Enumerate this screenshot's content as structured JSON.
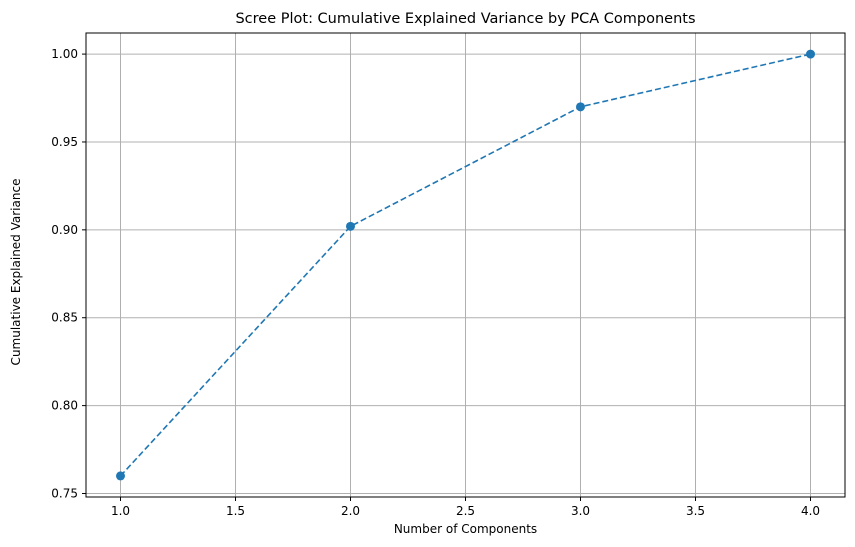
{
  "chart_data": {
    "type": "line",
    "title": "Scree Plot: Cumulative Explained Variance by PCA Components",
    "xlabel": "Number of Components",
    "ylabel": "Cumulative Explained Variance",
    "x": [
      1,
      2,
      3,
      4
    ],
    "series": [
      {
        "values": [
          0.76,
          0.902,
          0.97,
          1.0
        ],
        "color": "#1f77b4",
        "line_style": "dashed",
        "marker": "circle"
      }
    ],
    "xlim": [
      0.85,
      4.15
    ],
    "ylim": [
      0.748,
      1.012
    ],
    "xticks": [
      1.0,
      1.5,
      2.0,
      2.5,
      3.0,
      3.5,
      4.0
    ],
    "xtick_labels": [
      "1.0",
      "1.5",
      "2.0",
      "2.5",
      "3.0",
      "3.5",
      "4.0"
    ],
    "yticks": [
      0.75,
      0.8,
      0.85,
      0.9,
      0.95,
      1.0
    ],
    "ytick_labels": [
      "0.75",
      "0.80",
      "0.85",
      "0.90",
      "0.95",
      "1.00"
    ],
    "grid": true,
    "grid_color": "#b0b0b0",
    "legend": false
  }
}
